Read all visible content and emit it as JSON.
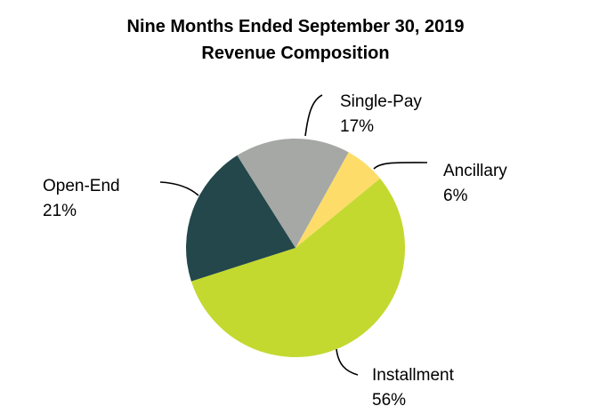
{
  "chart_data": {
    "type": "pie",
    "title": "Nine Months Ended September 30, 2019",
    "subtitle": "Revenue Composition",
    "start_angle_deg": 29,
    "direction": "clockwise",
    "slices": [
      {
        "key": "ancillary",
        "label": "Ancillary",
        "value": 6,
        "display": "6%",
        "color": "#fddc6a"
      },
      {
        "key": "installment",
        "label": "Installment",
        "value": 56,
        "display": "56%",
        "color": "#c3d930"
      },
      {
        "key": "open-end",
        "label": "Open-End",
        "value": 21,
        "display": "21%",
        "color": "#23474a"
      },
      {
        "key": "single-pay",
        "label": "Single-Pay",
        "value": 17,
        "display": "17%",
        "color": "#a5a8a5"
      }
    ]
  }
}
